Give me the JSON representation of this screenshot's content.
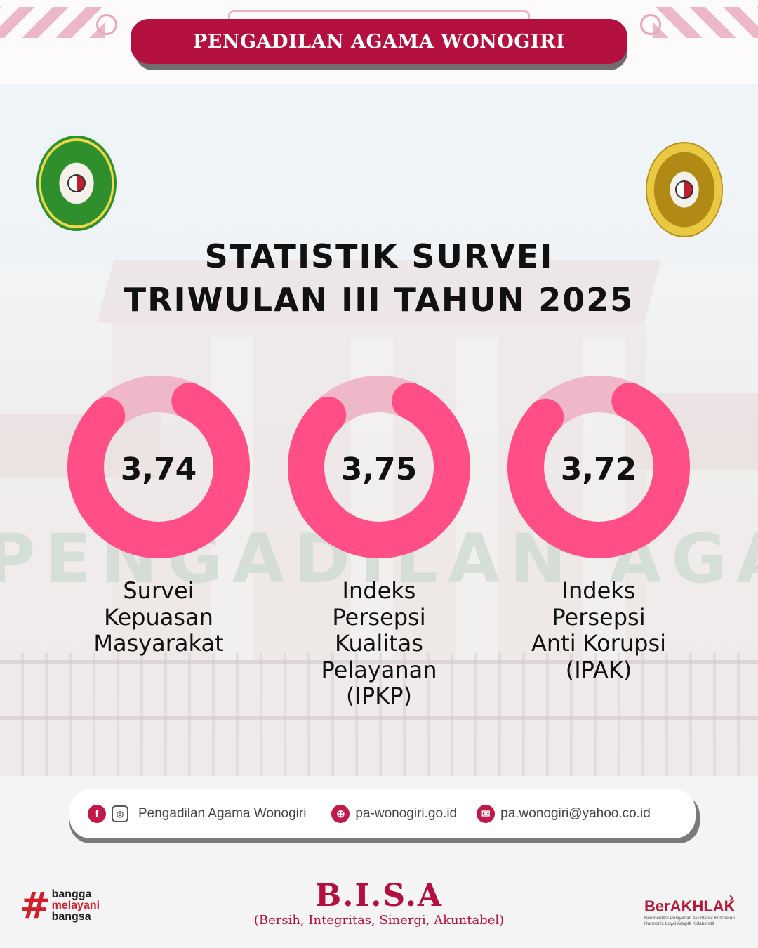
{
  "header": {
    "institution": "PENGADILAN AGAMA WONOGIRI"
  },
  "logos": {
    "left": "pengadilan-agama-wonogiri-seal",
    "right": "mahkamah-agung-seal"
  },
  "background_text": "PENGADILAN AGAMA WONOGIRI",
  "heading": {
    "line1": "STATISTIK SURVEI",
    "line2": "TRIWULAN III TAHUN 2025"
  },
  "metrics": [
    {
      "value": "3,74",
      "score": 3.74,
      "max": 4,
      "label_lines": [
        "Survei",
        "Kepuasan",
        "Masyarakat"
      ]
    },
    {
      "value": "3,75",
      "score": 3.75,
      "max": 4,
      "label_lines": [
        "Indeks",
        "Persepsi",
        "Kualitas",
        "Pelayanan",
        "(IPKP)"
      ]
    },
    {
      "value": "3,72",
      "score": 3.72,
      "max": 4,
      "label_lines": [
        "Indeks",
        "Persepsi",
        "Anti Korupsi",
        "(IPAK)"
      ]
    }
  ],
  "colors": {
    "brand": "#b3103f",
    "donut_fill": "#ff4f86",
    "donut_track": "#efb8c8"
  },
  "contact": {
    "social": "Pengadilan Agama Wonogiri",
    "website": "pa-wonogiri.go.id",
    "email": "pa.wonogiri@yahoo.co.id"
  },
  "footer": {
    "motto": "B.I.S.A",
    "motto_expanded": "(Bersih, Integritas, Sinergi, Akuntabel)",
    "left_badge": {
      "hash": "#",
      "line1": "bangga",
      "line2": "melayani",
      "line3": "bangsa"
    },
    "right_badge": {
      "name": "BerAKHLAK",
      "tagline": "Berorientasi Pelayanan Akuntabel Kompeten Harmonis Loyal Adaptif Kolaboratif"
    }
  }
}
